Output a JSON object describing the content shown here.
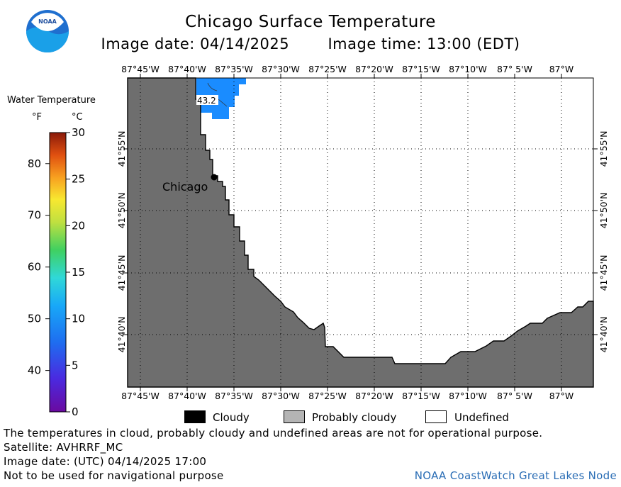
{
  "header": {
    "title": "Chicago Surface Temperature",
    "image_date": "Image date: 04/14/2025",
    "image_time": "Image time: 13:00 (EDT)"
  },
  "logo": {
    "text": "NOAA",
    "icon": "noaa-logo-icon"
  },
  "legend_scale": {
    "title": "Water Temperature",
    "unit_f": "°F",
    "unit_c": "°C",
    "f_ticks": [
      "80",
      "70",
      "60",
      "50",
      "40"
    ],
    "c_ticks": [
      "30",
      "25",
      "20",
      "15",
      "10",
      "5",
      "0"
    ],
    "f_values": [
      80,
      70,
      60,
      50,
      40
    ],
    "c_values": [
      30,
      25,
      20,
      15,
      10,
      5,
      0
    ],
    "c_range": [
      0,
      30
    ]
  },
  "map": {
    "lon_labels": [
      "87°45'W",
      "87°40'W",
      "87°35'W",
      "87°30'W",
      "87°25'W",
      "87°20'W",
      "87°15'W",
      "87°10'W",
      "87° 5'W",
      "87°W"
    ],
    "lat_labels": [
      "41°55'N",
      "41°50'N",
      "41°45'N",
      "41°40'N"
    ],
    "city": "Chicago",
    "temp_label": "43.2",
    "colors": {
      "land": "#6e6e6e",
      "water_undefined": "#ffffff",
      "sst_blue": "#1a8cff"
    }
  },
  "legend": {
    "cloudy": "Cloudy",
    "probably_cloudy": "Probably cloudy",
    "undefined": "Undefined",
    "colors": {
      "cloudy": "#000000",
      "probably_cloudy": "#b4b4b4",
      "undefined": "#ffffff"
    }
  },
  "footer": {
    "note": "The temperatures in cloud, probably cloudy and undefined areas are not for operational purpose.",
    "satellite": "Satellite: AVHRRF_MC",
    "utc_date": "Image date: (UTC) 04/14/2025  17:00",
    "nav_warning": "Not to be used for navigational purpose",
    "credit": "NOAA CoastWatch Great Lakes Node"
  }
}
